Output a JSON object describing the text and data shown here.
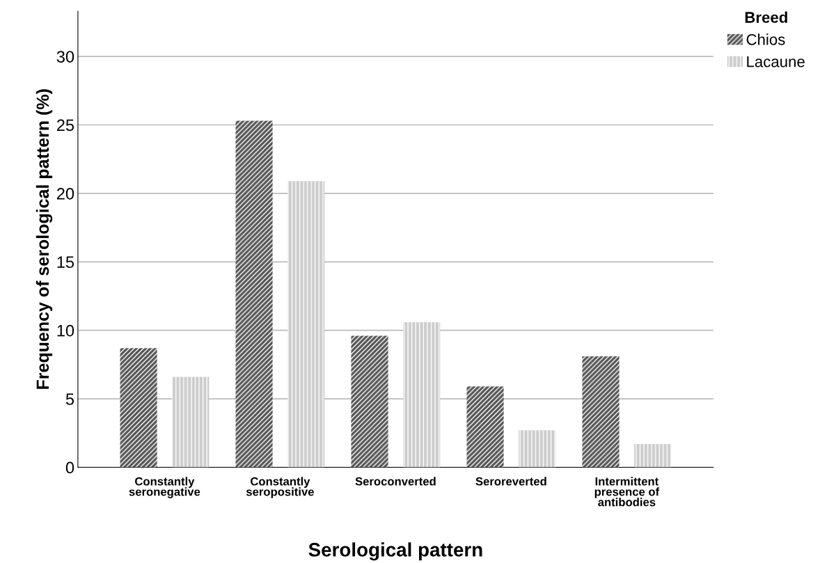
{
  "chart_data": {
    "type": "bar",
    "xlabel": "Serological pattern",
    "ylabel": "Frequency of serological pattern (%)",
    "legend_title": "Breed",
    "categories": [
      "Constantly\nseronegative",
      "Constantly\nseropositive",
      "Seroconverted",
      "Seroreverted",
      "Intermittent\npresence of\nantibodies"
    ],
    "series": [
      {
        "name": "Chios",
        "color": "#555555",
        "values": [
          8.7,
          25.3,
          9.6,
          5.9,
          8.1
        ]
      },
      {
        "name": "Lacaune",
        "color": "#cccccc",
        "values": [
          6.6,
          20.9,
          10.6,
          2.7,
          1.7
        ]
      }
    ],
    "ylim": [
      0,
      33.3
    ],
    "yticks": [
      0,
      5,
      10,
      15,
      20,
      25,
      30
    ],
    "grid": "y",
    "legend": "top right"
  }
}
